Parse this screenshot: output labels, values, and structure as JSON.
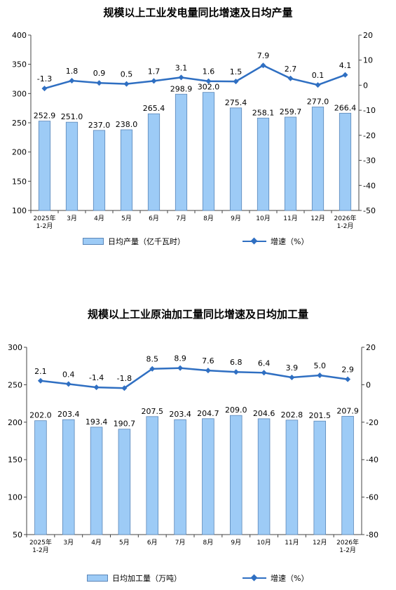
{
  "chart_data": [
    {
      "type": "bar",
      "title": "规模以上工业发电量同比增速及日均产量",
      "categories": [
        "2025年\n1-2月",
        "3月",
        "4月",
        "5月",
        "6月",
        "7月",
        "8月",
        "9月",
        "10月",
        "11月",
        "12月",
        "2026年\n1-2月"
      ],
      "series": [
        {
          "name": "日均产量（亿千瓦时）",
          "type": "bar",
          "axis": "left",
          "values": [
            252.9,
            251.0,
            237.0,
            238.0,
            265.4,
            298.9,
            302.0,
            275.4,
            258.1,
            259.7,
            277.0,
            266.4
          ]
        },
        {
          "name": "增速（%）",
          "type": "line",
          "axis": "right",
          "values": [
            -1.3,
            1.8,
            0.9,
            0.5,
            1.7,
            3.1,
            1.6,
            1.5,
            7.9,
            2.7,
            0.1,
            4.1
          ]
        }
      ],
      "ylim_left": [
        100,
        400
      ],
      "yticks_left": [
        100,
        150,
        200,
        250,
        300,
        350,
        400
      ],
      "ylim_right": [
        -50,
        20
      ],
      "yticks_right": [
        -50,
        -40,
        -30,
        -20,
        -10,
        0,
        10,
        20
      ],
      "bar_label_decimals": 1,
      "grid": false,
      "legend": "bottom",
      "colors": {
        "bar": "#9dcbf6",
        "bar_edge": "#5a86b8",
        "line": "#2f6fc2"
      }
    },
    {
      "type": "bar",
      "title": "规模以上工业原油加工量同比增速及日均加工量",
      "categories": [
        "2025年\n1-2月",
        "3月",
        "4月",
        "5月",
        "6月",
        "7月",
        "8月",
        "9月",
        "10月",
        "11月",
        "12月",
        "2026年\n1-2月"
      ],
      "series": [
        {
          "name": "日均加工量（万吨）",
          "type": "bar",
          "axis": "left",
          "values": [
            202.0,
            203.4,
            193.4,
            190.7,
            207.5,
            203.4,
            204.7,
            209.0,
            204.6,
            202.8,
            201.5,
            207.9
          ]
        },
        {
          "name": "增速（%）",
          "type": "line",
          "axis": "right",
          "values": [
            2.1,
            0.4,
            -1.4,
            -1.8,
            8.5,
            8.9,
            7.6,
            6.8,
            6.4,
            3.9,
            5.0,
            2.9
          ]
        }
      ],
      "ylim_left": [
        50,
        300
      ],
      "yticks_left": [
        50,
        100,
        150,
        200,
        250,
        300
      ],
      "ylim_right": [
        -80,
        20
      ],
      "yticks_right": [
        -80,
        -60,
        -40,
        -20,
        0,
        20
      ],
      "bar_label_decimals": 1,
      "grid": false,
      "legend": "bottom",
      "colors": {
        "bar": "#9dcbf6",
        "bar_edge": "#5a86b8",
        "line": "#2f6fc2"
      }
    }
  ]
}
